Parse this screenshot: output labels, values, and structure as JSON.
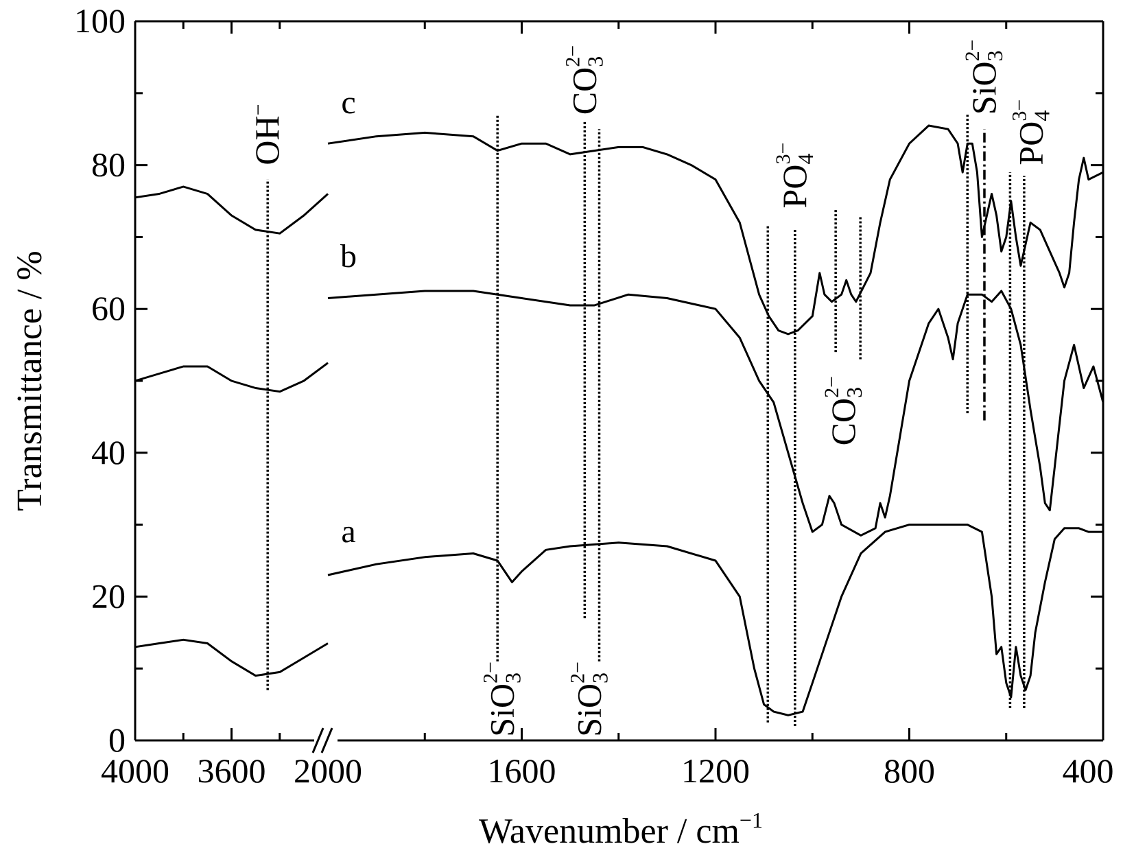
{
  "chart_data": {
    "type": "line",
    "title": "",
    "xlabel": "Wavenumber / cm",
    "xlabel_sup": "−1",
    "ylabel": "Transmittance / %",
    "ylim": [
      0,
      100
    ],
    "yticks": [
      0,
      20,
      40,
      60,
      80,
      100
    ],
    "x_segments": [
      {
        "range": [
          4000,
          3200
        ],
        "ticks": [
          4000,
          3600
        ]
      },
      {
        "range": [
          2000,
          400
        ],
        "ticks": [
          2000,
          1600,
          1200,
          800,
          400
        ]
      }
    ],
    "axis_break": true,
    "grid": false,
    "series": [
      {
        "name": "a",
        "points": [
          [
            4000,
            13
          ],
          [
            3900,
            13.5
          ],
          [
            3800,
            14
          ],
          [
            3700,
            13.5
          ],
          [
            3600,
            11
          ],
          [
            3500,
            9
          ],
          [
            3400,
            9.5
          ],
          [
            3300,
            11.5
          ],
          [
            3200,
            13.5
          ],
          [
            2000,
            23
          ],
          [
            1900,
            24.5
          ],
          [
            1800,
            25.5
          ],
          [
            1700,
            26
          ],
          [
            1650,
            25
          ],
          [
            1620,
            22
          ],
          [
            1600,
            23.5
          ],
          [
            1550,
            26.5
          ],
          [
            1500,
            27
          ],
          [
            1400,
            27.5
          ],
          [
            1300,
            27
          ],
          [
            1200,
            25
          ],
          [
            1150,
            20
          ],
          [
            1120,
            10
          ],
          [
            1100,
            5
          ],
          [
            1080,
            4
          ],
          [
            1050,
            3.5
          ],
          [
            1020,
            4
          ],
          [
            1000,
            8
          ],
          [
            970,
            14
          ],
          [
            960,
            16
          ],
          [
            940,
            20
          ],
          [
            900,
            26
          ],
          [
            850,
            29
          ],
          [
            800,
            30
          ],
          [
            750,
            30
          ],
          [
            680,
            30
          ],
          [
            650,
            29
          ],
          [
            630,
            20
          ],
          [
            620,
            12
          ],
          [
            610,
            13
          ],
          [
            600,
            8
          ],
          [
            590,
            6
          ],
          [
            580,
            13
          ],
          [
            570,
            9
          ],
          [
            560,
            7
          ],
          [
            550,
            9
          ],
          [
            540,
            15
          ],
          [
            520,
            22
          ],
          [
            500,
            28
          ],
          [
            480,
            29.5
          ],
          [
            450,
            29.5
          ],
          [
            430,
            29
          ],
          [
            400,
            29
          ]
        ]
      },
      {
        "name": "b",
        "points": [
          [
            4000,
            50
          ],
          [
            3900,
            51
          ],
          [
            3800,
            52
          ],
          [
            3700,
            52
          ],
          [
            3600,
            50
          ],
          [
            3500,
            49
          ],
          [
            3400,
            48.5
          ],
          [
            3300,
            50
          ],
          [
            3200,
            52.5
          ],
          [
            2000,
            61.5
          ],
          [
            1900,
            62
          ],
          [
            1800,
            62.5
          ],
          [
            1700,
            62.5
          ],
          [
            1600,
            61.5
          ],
          [
            1500,
            60.5
          ],
          [
            1450,
            60.5
          ],
          [
            1380,
            62
          ],
          [
            1300,
            61.5
          ],
          [
            1200,
            60
          ],
          [
            1150,
            56
          ],
          [
            1110,
            50
          ],
          [
            1080,
            47
          ],
          [
            1050,
            40
          ],
          [
            1020,
            33
          ],
          [
            1000,
            29
          ],
          [
            980,
            30
          ],
          [
            965,
            34
          ],
          [
            955,
            33
          ],
          [
            940,
            30
          ],
          [
            900,
            28.5
          ],
          [
            870,
            29.5
          ],
          [
            860,
            33
          ],
          [
            850,
            31
          ],
          [
            840,
            34
          ],
          [
            800,
            50
          ],
          [
            760,
            58
          ],
          [
            740,
            60
          ],
          [
            720,
            56
          ],
          [
            710,
            53
          ],
          [
            700,
            58
          ],
          [
            680,
            62
          ],
          [
            650,
            62
          ],
          [
            630,
            61
          ],
          [
            610,
            62.5
          ],
          [
            590,
            60
          ],
          [
            570,
            55
          ],
          [
            550,
            46
          ],
          [
            530,
            38
          ],
          [
            520,
            33
          ],
          [
            510,
            32
          ],
          [
            500,
            38
          ],
          [
            480,
            50
          ],
          [
            460,
            55
          ],
          [
            440,
            49
          ],
          [
            420,
            52
          ],
          [
            400,
            47
          ]
        ]
      },
      {
        "name": "c",
        "points": [
          [
            4000,
            75.5
          ],
          [
            3900,
            76
          ],
          [
            3800,
            77
          ],
          [
            3700,
            76
          ],
          [
            3600,
            73
          ],
          [
            3500,
            71
          ],
          [
            3400,
            70.5
          ],
          [
            3300,
            73
          ],
          [
            3200,
            76
          ],
          [
            2000,
            83
          ],
          [
            1900,
            84
          ],
          [
            1800,
            84.5
          ],
          [
            1700,
            84
          ],
          [
            1650,
            82
          ],
          [
            1600,
            83
          ],
          [
            1550,
            83
          ],
          [
            1500,
            81.5
          ],
          [
            1450,
            82
          ],
          [
            1400,
            82.5
          ],
          [
            1350,
            82.5
          ],
          [
            1300,
            81.5
          ],
          [
            1250,
            80
          ],
          [
            1200,
            78
          ],
          [
            1150,
            72
          ],
          [
            1110,
            62
          ],
          [
            1090,
            59
          ],
          [
            1070,
            57
          ],
          [
            1050,
            56.5
          ],
          [
            1030,
            57
          ],
          [
            1000,
            59
          ],
          [
            985,
            65
          ],
          [
            975,
            62
          ],
          [
            960,
            61
          ],
          [
            940,
            62
          ],
          [
            930,
            64
          ],
          [
            920,
            62
          ],
          [
            910,
            61
          ],
          [
            880,
            65
          ],
          [
            860,
            72
          ],
          [
            840,
            78
          ],
          [
            800,
            83
          ],
          [
            760,
            85.5
          ],
          [
            720,
            85
          ],
          [
            700,
            83
          ],
          [
            690,
            79
          ],
          [
            680,
            83
          ],
          [
            670,
            83
          ],
          [
            660,
            79
          ],
          [
            650,
            70
          ],
          [
            640,
            73
          ],
          [
            630,
            76
          ],
          [
            620,
            73
          ],
          [
            610,
            68
          ],
          [
            600,
            70
          ],
          [
            590,
            75
          ],
          [
            580,
            70
          ],
          [
            570,
            66
          ],
          [
            560,
            69
          ],
          [
            550,
            72
          ],
          [
            530,
            71
          ],
          [
            510,
            68
          ],
          [
            490,
            65
          ],
          [
            480,
            63
          ],
          [
            470,
            65
          ],
          [
            460,
            72
          ],
          [
            450,
            78
          ],
          [
            440,
            81
          ],
          [
            430,
            78
          ],
          [
            400,
            79
          ]
        ]
      }
    ],
    "series_labels": [
      "a",
      "b",
      "c"
    ],
    "reference_lines": [
      {
        "x": 3450,
        "segment": 1,
        "y_from": 7,
        "y_to": 78,
        "style": "dotted"
      },
      {
        "x": 1650,
        "y_from": 11,
        "y_to": 87,
        "style": "dotted"
      },
      {
        "x": 1470,
        "y_from": 17,
        "y_to": 86,
        "style": "dotted"
      },
      {
        "x": 1440,
        "y_from": 11,
        "y_to": 85,
        "style": "dotted"
      },
      {
        "x": 1092,
        "y_from": 2.5,
        "y_to": 71.5,
        "style": "dotted"
      },
      {
        "x": 1036,
        "y_from": 2,
        "y_to": 71,
        "style": "dotted"
      },
      {
        "x": 952,
        "y_from": 54,
        "y_to": 74,
        "style": "dotted"
      },
      {
        "x": 901,
        "y_from": 53,
        "y_to": 73,
        "style": "dotted"
      },
      {
        "x": 680,
        "y_from": 45.5,
        "y_to": 87,
        "style": "dotted"
      },
      {
        "x": 645,
        "y_from": 44.5,
        "y_to": 85,
        "style": "dashdot"
      },
      {
        "x": 592,
        "y_from": 4.5,
        "y_to": 79,
        "style": "dotted"
      },
      {
        "x": 563,
        "y_from": 4.5,
        "y_to": 78.5,
        "style": "dotted"
      }
    ],
    "annotations": [
      {
        "base": "OH",
        "sup": "−",
        "sub": "",
        "x": 3450,
        "segment": 1,
        "y": 80
      },
      {
        "base": "CO",
        "sup": "2−",
        "sub": "3",
        "x": 1470,
        "y": 87
      },
      {
        "base": "PO",
        "sup": "3−",
        "sub": "4",
        "x": 1036,
        "y": 74
      },
      {
        "base": "CO",
        "sup": "2−",
        "sub": "3",
        "x": 935,
        "y": 41
      },
      {
        "base": "SiO",
        "sup": "2−",
        "sub": "3",
        "x": 645,
        "y": 87
      },
      {
        "base": "PO",
        "sup": "3−",
        "sub": "4",
        "x": 548,
        "y": 80
      },
      {
        "base": "SiO",
        "sup": "2−",
        "sub": "3",
        "x": 1640,
        "y": 0.5
      },
      {
        "base": "SiO",
        "sup": "2−",
        "sub": "3",
        "x": 1460,
        "y": 0.5
      }
    ]
  }
}
